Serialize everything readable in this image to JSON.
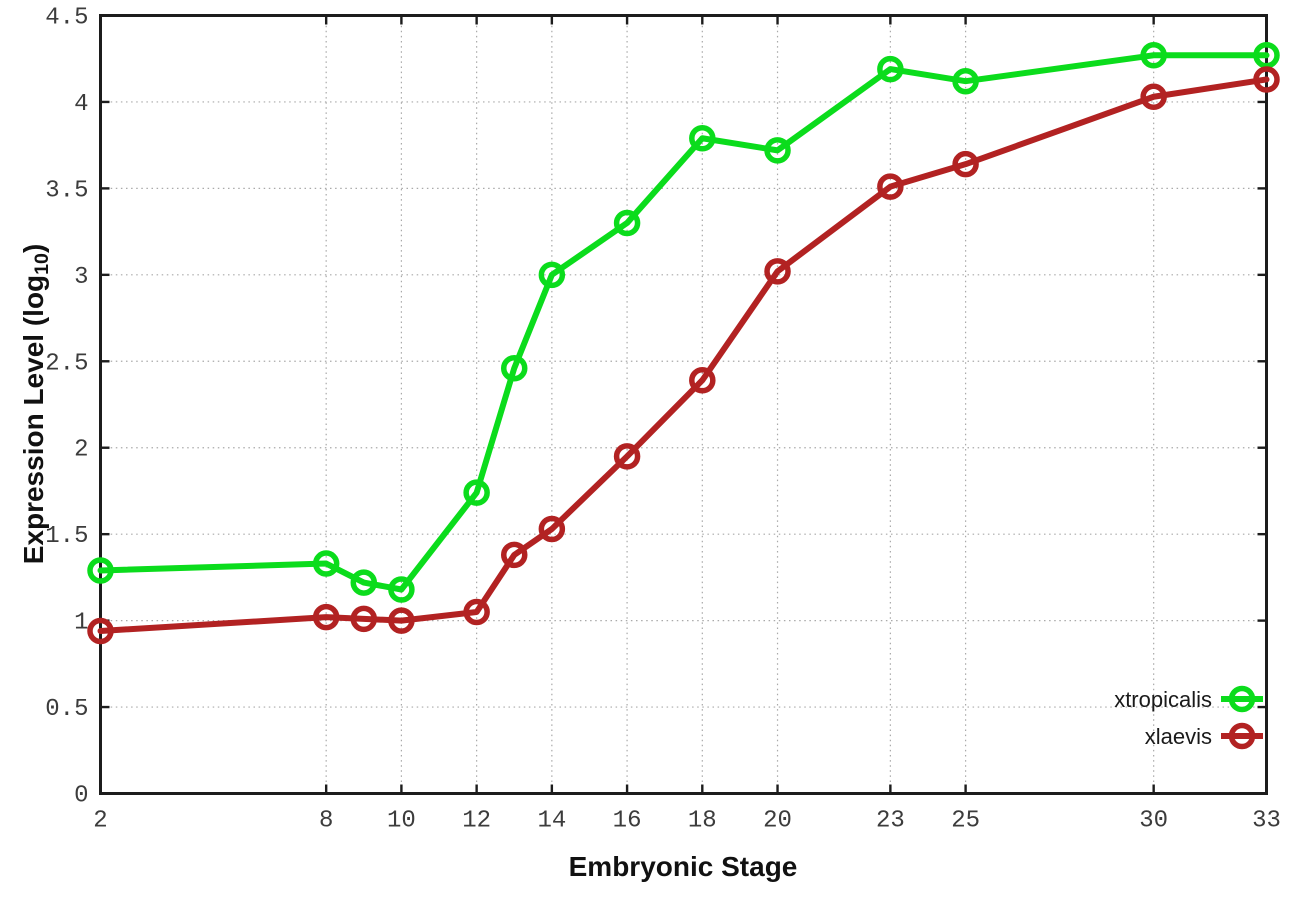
{
  "chart_data": {
    "type": "line",
    "title": "",
    "xlabel": "Embryonic Stage",
    "ylabel": "Expression Level (log10)",
    "ylabel_parts": {
      "prefix": "Expression Level (log",
      "subscript": "10",
      "suffix": ")"
    },
    "xlim": [
      2,
      33
    ],
    "ylim": [
      0,
      4.5
    ],
    "x_tick_values": [
      2,
      8,
      10,
      12,
      14,
      16,
      18,
      20,
      23,
      25,
      30,
      33
    ],
    "x_tick_labels": [
      "2",
      "8",
      "10",
      "12",
      "14",
      "16",
      "18",
      "20",
      "23",
      "25",
      "30",
      "33"
    ],
    "y_tick_values": [
      0,
      0.5,
      1,
      1.5,
      2,
      2.5,
      3,
      3.5,
      4,
      4.5
    ],
    "y_tick_labels": [
      "0",
      "0.5",
      "1",
      "1.5",
      "2",
      "2.5",
      "3",
      "3.5",
      "4",
      "4.5"
    ],
    "grid": true,
    "legend_position": "bottom-right",
    "x": [
      2,
      8,
      9,
      10,
      12,
      13,
      14,
      16,
      18,
      20,
      23,
      25,
      30,
      33
    ],
    "series": [
      {
        "name": "xtropicalis",
        "color": "#0bdc1c",
        "values": [
          1.29,
          1.33,
          1.22,
          1.18,
          1.74,
          2.46,
          3.0,
          3.3,
          3.79,
          3.72,
          4.19,
          4.12,
          4.27,
          4.27
        ]
      },
      {
        "name": "xlaevis",
        "color": "#b22222",
        "values": [
          0.94,
          1.02,
          1.01,
          1.0,
          1.05,
          1.38,
          1.53,
          1.95,
          2.39,
          3.02,
          3.51,
          3.64,
          4.03,
          4.13
        ]
      }
    ],
    "style": {
      "background": "#ffffff",
      "border_color": "#1c1c1c",
      "grid_color": "#a9a9a9",
      "tick_text_color": "#3c3c3c",
      "label_text_color": "#111111",
      "legend_text_color": "#1a1a1a"
    }
  }
}
